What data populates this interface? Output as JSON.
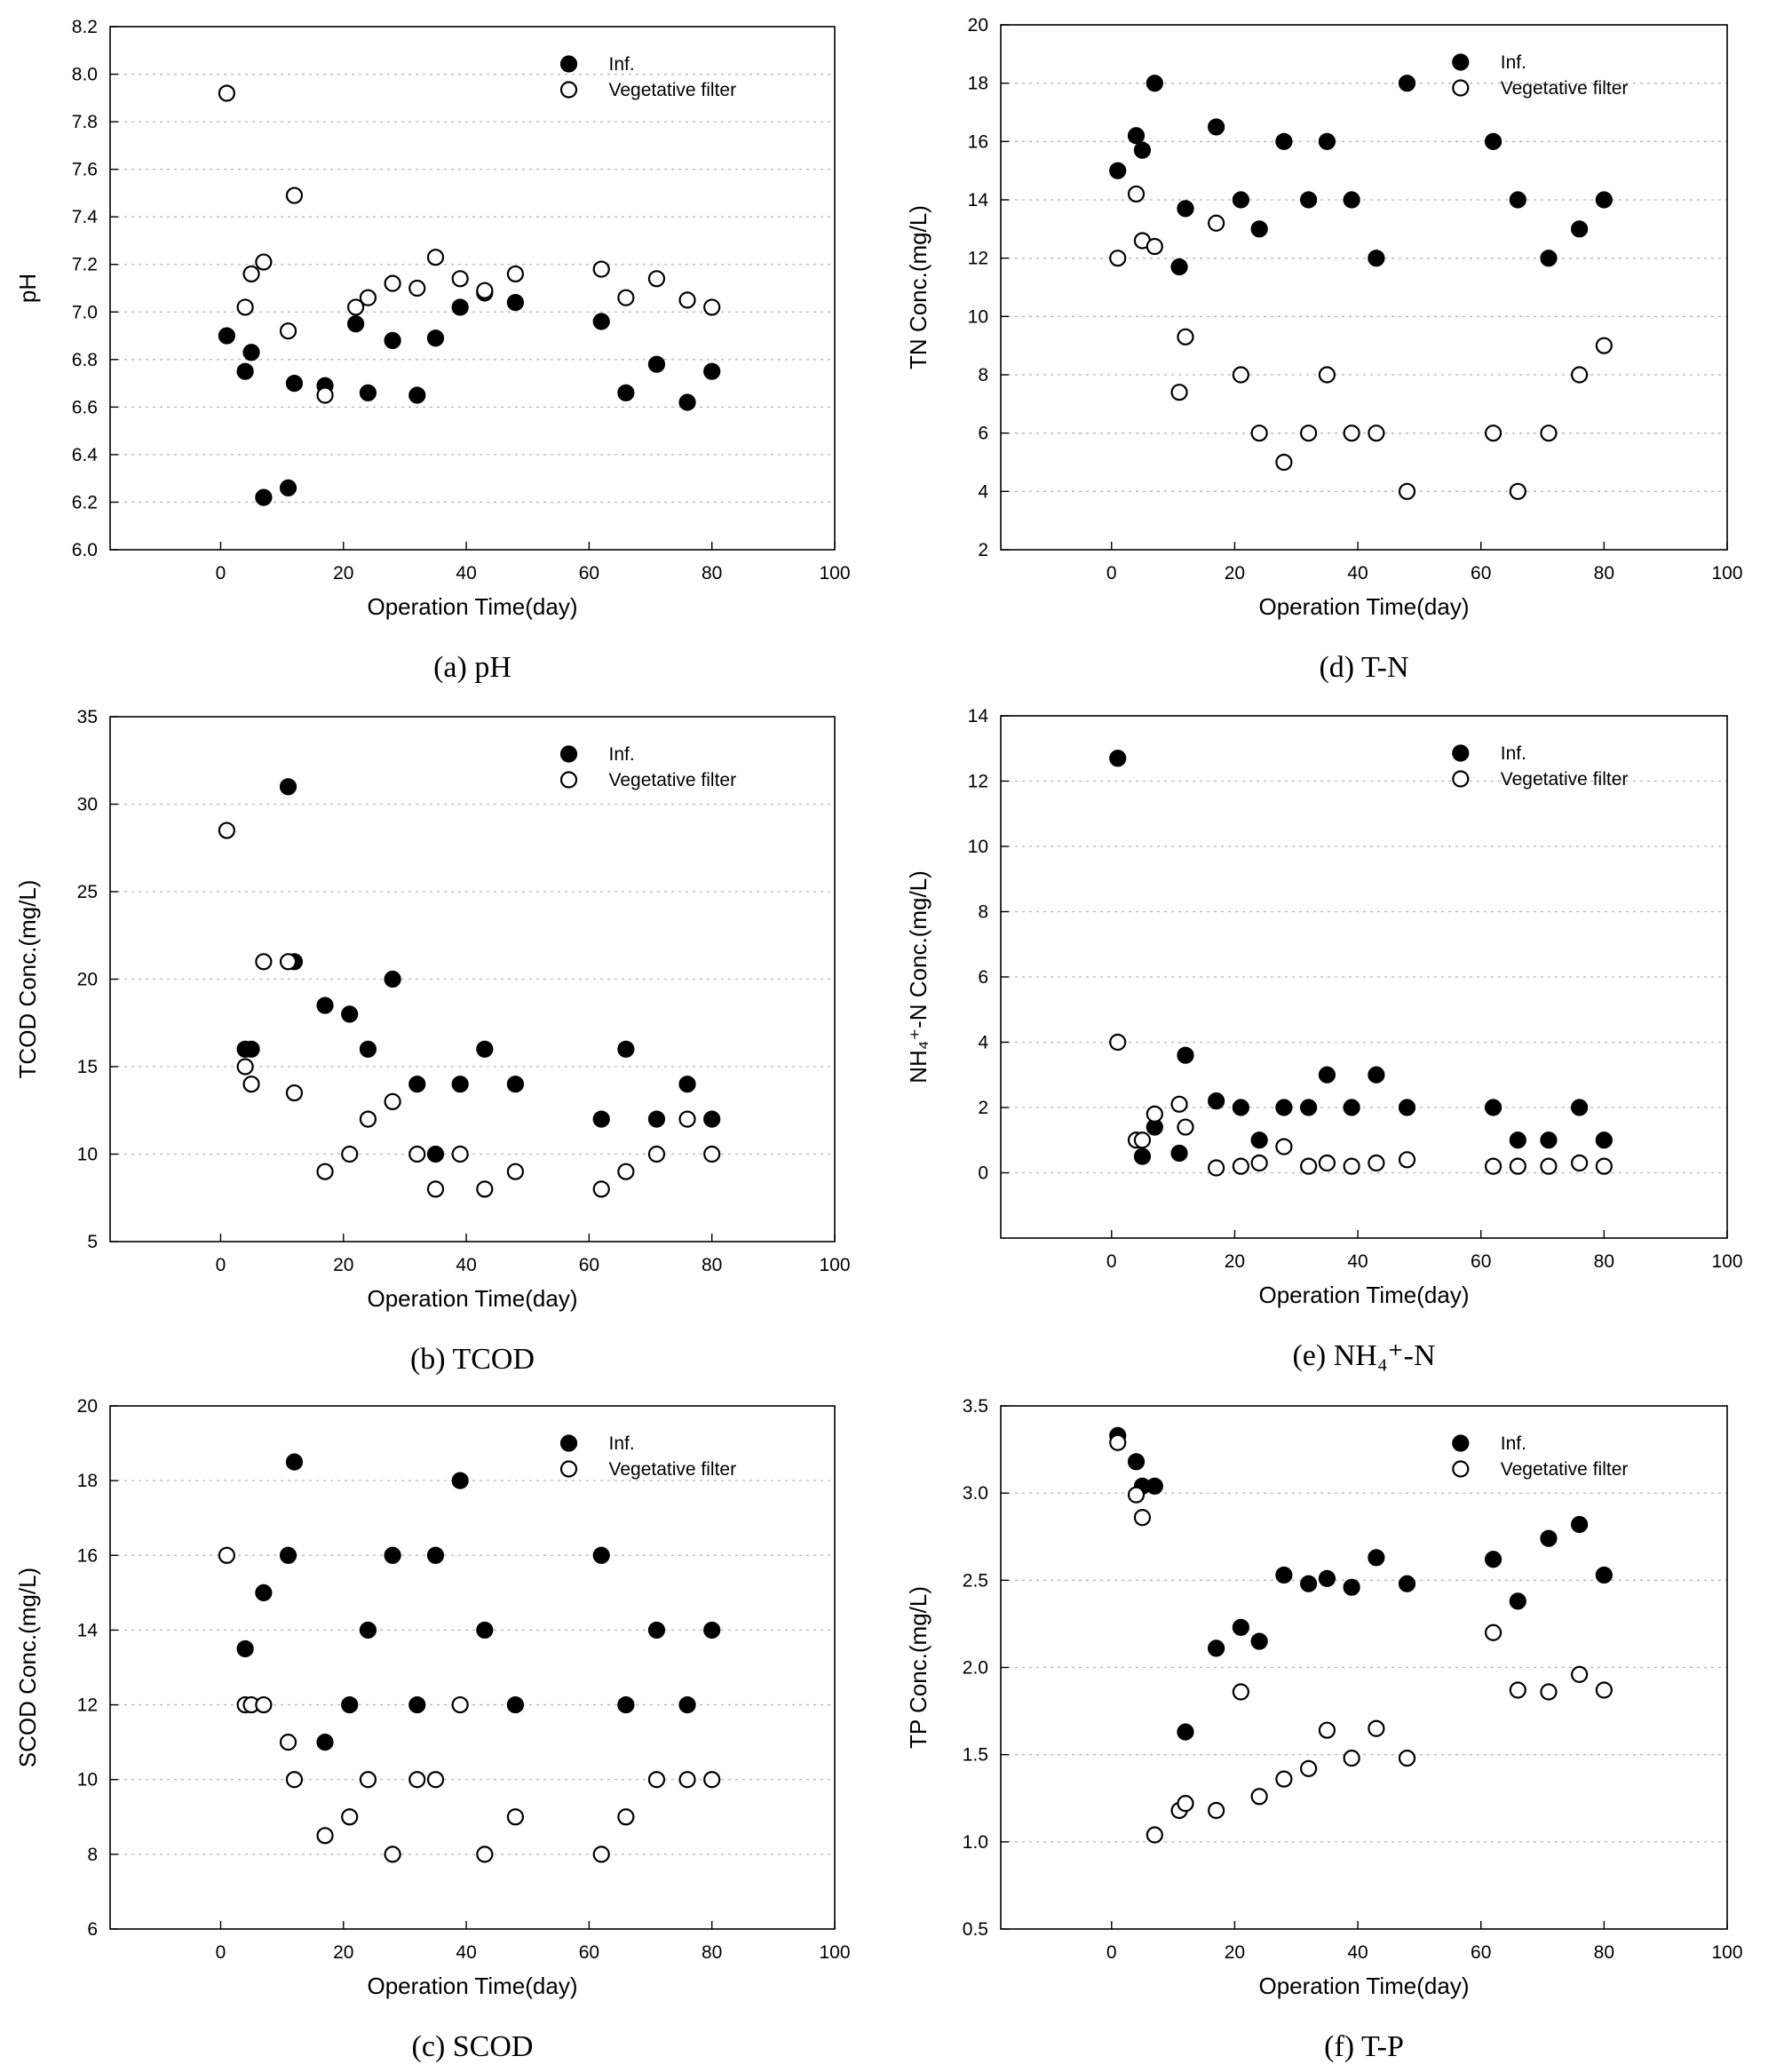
{
  "chart_data": [
    {
      "type": "scatter",
      "caption": "(a) pH",
      "xlabel": "Operation Time(day)",
      "ylabel": "pH",
      "xlim": [
        -18,
        100
      ],
      "xticks": [
        0,
        20,
        40,
        60,
        80,
        100
      ],
      "ylim": [
        6.0,
        8.2
      ],
      "yticks": [
        "6.0",
        "6.2",
        "6.4",
        "6.6",
        "6.8",
        "7.0",
        "7.2",
        "7.4",
        "7.6",
        "7.8",
        "8.0",
        "8.2"
      ],
      "grid": true,
      "legend_position": "top-right",
      "series": [
        {
          "name": "Inf.",
          "marker": "filled-circle",
          "x": [
            1,
            4,
            5,
            7,
            11,
            12,
            17,
            22,
            24,
            28,
            32,
            35,
            39,
            43,
            48,
            62,
            66,
            71,
            76,
            80
          ],
          "y": [
            6.9,
            6.75,
            6.83,
            6.22,
            6.26,
            6.7,
            6.69,
            6.95,
            6.66,
            6.88,
            6.65,
            6.89,
            7.02,
            7.08,
            7.04,
            6.96,
            6.66,
            6.78,
            6.62,
            6.75
          ]
        },
        {
          "name": "Vegetative filter",
          "marker": "open-circle",
          "x": [
            1,
            4,
            5,
            7,
            11,
            12,
            17,
            22,
            24,
            28,
            32,
            35,
            39,
            43,
            48,
            62,
            66,
            71,
            76,
            80
          ],
          "y": [
            7.92,
            7.02,
            7.16,
            7.21,
            6.92,
            7.49,
            6.65,
            7.02,
            7.06,
            7.12,
            7.1,
            7.23,
            7.14,
            7.09,
            7.16,
            7.18,
            7.06,
            7.14,
            7.05,
            7.02
          ]
        }
      ]
    },
    {
      "type": "scatter",
      "caption": "(b) TCOD",
      "xlabel": "Operation Time(day)",
      "ylabel": "TCOD Conc.(mg/L)",
      "xlim": [
        -18,
        100
      ],
      "xticks": [
        0,
        20,
        40,
        60,
        80,
        100
      ],
      "ylim": [
        5,
        35
      ],
      "yticks": [
        "5",
        "10",
        "15",
        "20",
        "25",
        "30",
        "35"
      ],
      "grid": true,
      "legend_position": "top-right",
      "series": [
        {
          "name": "Inf.",
          "marker": "filled-circle",
          "x": [
            4,
            5,
            11,
            12,
            17,
            21,
            24,
            28,
            32,
            35,
            39,
            43,
            48,
            62,
            66,
            71,
            76,
            80
          ],
          "y": [
            16,
            16,
            31,
            21,
            18.5,
            18,
            16,
            20,
            14,
            10,
            14,
            16,
            14,
            12,
            16,
            12,
            14,
            12
          ]
        },
        {
          "name": "Vegetative filter",
          "marker": "open-circle",
          "x": [
            1,
            4,
            5,
            7,
            11,
            12,
            17,
            21,
            24,
            28,
            32,
            35,
            39,
            43,
            48,
            62,
            66,
            71,
            76,
            80
          ],
          "y": [
            28.5,
            15,
            14,
            21,
            21,
            13.5,
            9,
            10,
            12,
            13,
            10,
            8,
            10,
            8,
            9,
            8,
            9,
            10,
            12,
            10
          ]
        }
      ]
    },
    {
      "type": "scatter",
      "caption": "(c) SCOD",
      "xlabel": "Operation Time(day)",
      "ylabel": "SCOD Conc.(mg/L)",
      "xlim": [
        -18,
        100
      ],
      "xticks": [
        0,
        20,
        40,
        60,
        80,
        100
      ],
      "ylim": [
        6,
        20
      ],
      "yticks": [
        "6",
        "8",
        "10",
        "12",
        "14",
        "16",
        "18",
        "20"
      ],
      "grid": true,
      "legend_position": "top-right",
      "series": [
        {
          "name": "Inf.",
          "marker": "filled-circle",
          "x": [
            4,
            7,
            11,
            12,
            17,
            21,
            24,
            28,
            32,
            35,
            39,
            43,
            48,
            62,
            66,
            71,
            76,
            80
          ],
          "y": [
            13.5,
            15,
            16,
            18.5,
            11,
            12,
            14,
            16,
            12,
            16,
            18,
            14,
            12,
            16,
            12,
            14,
            12,
            14
          ]
        },
        {
          "name": "Vegetative filter",
          "marker": "open-circle",
          "x": [
            1,
            4,
            5,
            7,
            11,
            12,
            17,
            21,
            24,
            28,
            32,
            35,
            39,
            43,
            48,
            62,
            66,
            71,
            76,
            80
          ],
          "y": [
            16,
            12,
            12,
            12,
            11,
            10,
            8.5,
            9,
            10,
            8,
            10,
            10,
            12,
            8,
            9,
            8,
            9,
            10,
            10,
            10
          ]
        }
      ]
    },
    {
      "type": "scatter",
      "caption": "(d) T-N",
      "xlabel": "Operation Time(day)",
      "ylabel": "TN Conc.(mg/L)",
      "xlim": [
        -18,
        100
      ],
      "xticks": [
        0,
        20,
        40,
        60,
        80,
        100
      ],
      "ylim": [
        2,
        20
      ],
      "yticks": [
        "2",
        "4",
        "6",
        "8",
        "10",
        "12",
        "14",
        "16",
        "18",
        "20"
      ],
      "grid": true,
      "legend_position": "top-right",
      "series": [
        {
          "name": "Inf.",
          "marker": "filled-circle",
          "x": [
            1,
            4,
            5,
            7,
            11,
            12,
            17,
            21,
            24,
            28,
            32,
            35,
            39,
            43,
            48,
            62,
            66,
            71,
            76,
            80
          ],
          "y": [
            15,
            16.2,
            15.7,
            18,
            11.7,
            13.7,
            16.5,
            14,
            13,
            16,
            14,
            16,
            14,
            12,
            18,
            16,
            14,
            12,
            13,
            14
          ]
        },
        {
          "name": "Vegetative filter",
          "marker": "open-circle",
          "x": [
            1,
            4,
            5,
            7,
            11,
            12,
            17,
            21,
            24,
            28,
            32,
            35,
            39,
            43,
            48,
            62,
            66,
            71,
            76,
            80
          ],
          "y": [
            12,
            14.2,
            12.6,
            12.4,
            7.4,
            9.3,
            13.2,
            8,
            6,
            5,
            6,
            8,
            6,
            6,
            4,
            6,
            4,
            6,
            8,
            9
          ]
        }
      ]
    },
    {
      "type": "scatter",
      "caption": "(e) NH₄⁺-N",
      "xlabel": "Operation Time(day)",
      "ylabel": "NH₄⁺-N Conc.(mg/L)",
      "xlim": [
        -18,
        100
      ],
      "xticks": [
        0,
        20,
        40,
        60,
        80,
        100
      ],
      "ylim": [
        -2,
        14
      ],
      "yticks": [
        "0",
        "2",
        "4",
        "6",
        "8",
        "10",
        "12",
        "14"
      ],
      "grid": true,
      "legend_position": "top-right",
      "series": [
        {
          "name": "Inf.",
          "marker": "filled-circle",
          "x": [
            1,
            5,
            7,
            11,
            12,
            17,
            21,
            24,
            28,
            32,
            35,
            39,
            43,
            48,
            62,
            66,
            71,
            76,
            80
          ],
          "y": [
            12.7,
            0.5,
            1.4,
            0.6,
            3.6,
            2.2,
            2,
            1,
            2,
            2,
            3,
            2,
            3,
            2,
            2,
            1,
            1,
            2,
            1
          ]
        },
        {
          "name": "Vegetative filter",
          "marker": "open-circle",
          "x": [
            1,
            4,
            5,
            7,
            11,
            12,
            17,
            21,
            24,
            28,
            32,
            35,
            39,
            43,
            48,
            62,
            66,
            71,
            76,
            80
          ],
          "y": [
            4,
            1,
            1,
            1.8,
            2.1,
            1.4,
            0.15,
            0.2,
            0.3,
            0.8,
            0.2,
            0.3,
            0.2,
            0.3,
            0.4,
            0.2,
            0.2,
            0.2,
            0.3,
            0.2
          ]
        }
      ]
    },
    {
      "type": "scatter",
      "caption": "(f) T-P",
      "xlabel": "Operation Time(day)",
      "ylabel": "TP Conc.(mg/L)",
      "xlim": [
        -18,
        100
      ],
      "xticks": [
        0,
        20,
        40,
        60,
        80,
        100
      ],
      "ylim": [
        0.5,
        3.5
      ],
      "yticks": [
        "0.5",
        "1.0",
        "1.5",
        "2.0",
        "2.5",
        "3.0",
        "3.5"
      ],
      "grid": true,
      "legend_position": "top-right",
      "series": [
        {
          "name": "Inf.",
          "marker": "filled-circle",
          "x": [
            1,
            4,
            5,
            7,
            12,
            17,
            21,
            24,
            28,
            32,
            35,
            39,
            43,
            48,
            62,
            66,
            71,
            76,
            80
          ],
          "y": [
            3.33,
            3.18,
            3.04,
            3.04,
            1.63,
            2.11,
            2.23,
            2.15,
            2.53,
            2.48,
            2.51,
            2.46,
            2.63,
            2.48,
            2.62,
            2.38,
            2.74,
            2.82,
            2.53
          ]
        },
        {
          "name": "Vegetative filter",
          "marker": "open-circle",
          "x": [
            1,
            4,
            5,
            7,
            11,
            12,
            17,
            21,
            24,
            28,
            32,
            35,
            39,
            43,
            48,
            62,
            66,
            71,
            76,
            80
          ],
          "y": [
            3.29,
            2.99,
            2.86,
            1.04,
            1.18,
            1.22,
            1.18,
            1.86,
            1.26,
            1.36,
            1.42,
            1.64,
            1.48,
            1.65,
            1.48,
            2.2,
            1.87,
            1.86,
            1.96,
            1.87
          ]
        }
      ]
    }
  ]
}
